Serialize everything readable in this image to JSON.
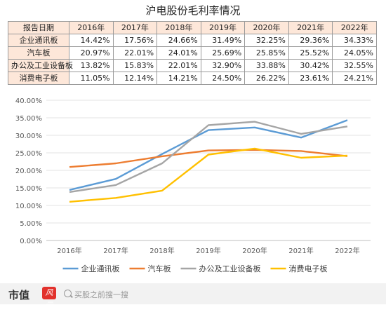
{
  "title": "沪电股份毛利率情况",
  "table": {
    "corner": "报告日期",
    "years": [
      "2016年",
      "2017年",
      "2018年",
      "2019年",
      "2020年",
      "2021年",
      "2022年"
    ],
    "rows": [
      {
        "label": "企业通讯板",
        "cells": [
          "14.42%",
          "17.56%",
          "24.66%",
          "31.49%",
          "32.25%",
          "29.36%",
          "34.33%"
        ]
      },
      {
        "label": "汽车板",
        "cells": [
          "20.97%",
          "22.01%",
          "24.01%",
          "25.69%",
          "25.85%",
          "25.52%",
          "24.05%"
        ]
      },
      {
        "label": "办公及工业设备板",
        "cells": [
          "13.82%",
          "15.83%",
          "22.01%",
          "32.90%",
          "33.88%",
          "30.42%",
          "32.55%"
        ]
      },
      {
        "label": "消费电子板",
        "cells": [
          "11.05%",
          "12.14%",
          "14.21%",
          "24.50%",
          "26.22%",
          "23.61%",
          "24.21%"
        ]
      }
    ]
  },
  "chart_data": {
    "type": "line",
    "x": [
      "2016年",
      "2017年",
      "2018年",
      "2019年",
      "2020年",
      "2021年",
      "2022年"
    ],
    "ylim": [
      0,
      40
    ],
    "yticks": [
      "0.00%",
      "5.00%",
      "10.00%",
      "15.00%",
      "20.00%",
      "25.00%",
      "30.00%",
      "35.00%",
      "40.00%"
    ],
    "ytick_values": [
      0,
      5,
      10,
      15,
      20,
      25,
      30,
      35,
      40
    ],
    "grid": true,
    "legend": "bottom",
    "series": [
      {
        "name": "企业通讯板",
        "color": "#5b9bd5",
        "values": [
          14.42,
          17.56,
          24.66,
          31.49,
          32.25,
          29.36,
          34.33
        ]
      },
      {
        "name": "汽车板",
        "color": "#ed7d31",
        "values": [
          20.97,
          22.01,
          24.01,
          25.69,
          25.85,
          25.52,
          24.05
        ]
      },
      {
        "name": "办公及工业设备板",
        "color": "#a5a5a5",
        "values": [
          13.82,
          15.83,
          22.01,
          32.9,
          33.88,
          30.42,
          32.55
        ]
      },
      {
        "name": "消费电子板",
        "color": "#ffc000",
        "values": [
          11.05,
          12.14,
          14.21,
          24.5,
          26.22,
          23.61,
          24.21
        ]
      }
    ]
  },
  "footer": {
    "brand": "市值",
    "brand_badge": "风云",
    "search_placeholder": "买股之前搜一搜"
  }
}
